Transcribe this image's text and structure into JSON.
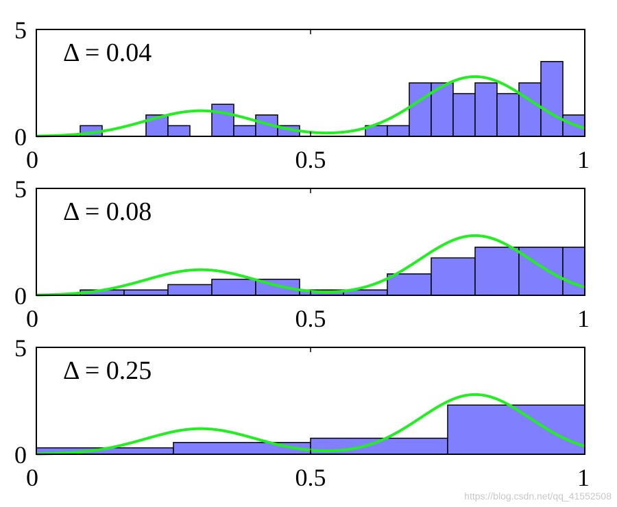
{
  "colors": {
    "bar_fill": "#8080ff",
    "curve": "#22ee22",
    "watermark": "#c8c8c8"
  },
  "watermark": "https://blog.csdn.net/qq_41552508",
  "chart_data": [
    {
      "type": "bar",
      "annotation": "Δ = 0.04",
      "xlim": [
        0,
        1
      ],
      "ylim": [
        0,
        5
      ],
      "xticks": [
        "0",
        "0.5",
        "1"
      ],
      "yticks": [
        "0",
        "5"
      ],
      "bin_width": 0.04,
      "bin_edges": [
        0.08,
        0.12,
        0.16,
        0.2,
        0.24,
        0.28,
        0.32,
        0.36,
        0.4,
        0.44,
        0.48,
        0.52,
        0.56,
        0.6,
        0.64,
        0.68,
        0.72,
        0.76,
        0.8,
        0.84,
        0.88,
        0.92,
        0.96,
        1.0
      ],
      "values": [
        0.5,
        0,
        0,
        1,
        0.5,
        0,
        1.5,
        0.5,
        1,
        0.5,
        0,
        0,
        0,
        0.5,
        0.5,
        2.5,
        2.5,
        2,
        2.5,
        2,
        2.5,
        3.5,
        1
      ],
      "curve": {
        "components": [
          {
            "weight": 0.3,
            "mean": 0.3,
            "sd": 0.1
          },
          {
            "weight": 0.7,
            "mean": 0.8,
            "sd": 0.1
          }
        ]
      }
    },
    {
      "type": "bar",
      "annotation": "Δ = 0.08",
      "xlim": [
        0,
        1
      ],
      "ylim": [
        0,
        5
      ],
      "xticks": [
        "0",
        "0.5",
        "1"
      ],
      "yticks": [
        "0",
        "5"
      ],
      "bin_width": 0.08,
      "bin_edges": [
        0.08,
        0.16,
        0.24,
        0.32,
        0.4,
        0.48,
        0.56,
        0.64,
        0.72,
        0.8,
        0.88,
        0.96,
        1.0
      ],
      "values": [
        0.25,
        0.25,
        0.5,
        0.75,
        0.75,
        0.25,
        0.25,
        1.0,
        1.75,
        2.25,
        2.25,
        2.25
      ],
      "curve": {
        "components": [
          {
            "weight": 0.3,
            "mean": 0.3,
            "sd": 0.1
          },
          {
            "weight": 0.7,
            "mean": 0.8,
            "sd": 0.1
          }
        ]
      }
    },
    {
      "type": "bar",
      "annotation": "Δ = 0.25",
      "xlim": [
        0,
        1
      ],
      "ylim": [
        0,
        5
      ],
      "xticks": [
        "0",
        "0.5",
        "1"
      ],
      "yticks": [
        "0",
        "5"
      ],
      "bin_width": 0.25,
      "bin_edges": [
        0.0,
        0.25,
        0.5,
        0.75,
        1.0
      ],
      "values": [
        0.3,
        0.55,
        0.75,
        2.3
      ],
      "curve": {
        "components": [
          {
            "weight": 0.3,
            "mean": 0.3,
            "sd": 0.1
          },
          {
            "weight": 0.7,
            "mean": 0.8,
            "sd": 0.1
          }
        ]
      }
    }
  ]
}
